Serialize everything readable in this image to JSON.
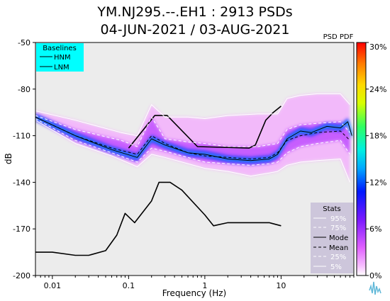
{
  "title_line1": "YM.NJ295.--.EH1 : 2913 PSDs",
  "title_line2": "04-JUN-2021 / 03-AUG-2021",
  "chart_data": {
    "type": "heatmap",
    "title": "YM.NJ295.--.EH1 : 2913 PSDs",
    "subtitle": "04-JUN-2021 / 03-AUG-2021",
    "xlabel": "Frequency (Hz)",
    "ylabel": "dB",
    "x_scale": "log",
    "xlim": [
      0.006,
      90
    ],
    "ylim": [
      -200,
      -50
    ],
    "x_ticks": [
      0.01,
      0.1,
      1,
      10
    ],
    "x_tick_labels": [
      "0.01",
      "0.1",
      "1",
      "10"
    ],
    "y_ticks": [
      -50,
      -80,
      -110,
      -140,
      -170,
      -200
    ],
    "y_tick_labels": [
      "-50",
      "-80",
      "-110",
      "-140",
      "-170",
      "-200"
    ],
    "colorbar": {
      "label": "PSD PDF",
      "ticks": [
        0,
        6,
        12,
        18,
        24,
        30
      ],
      "tick_labels": [
        "0%",
        "6%",
        "12%",
        "18%",
        "24%",
        "30%"
      ]
    },
    "baselines_legend": {
      "title": "Baselines",
      "entries": [
        "HNM",
        "LNM"
      ],
      "color": "#00ffff"
    },
    "stats_legend": {
      "title": "Stats",
      "entries": [
        "95%",
        "75%",
        "Mode",
        "Mean",
        "25%",
        "5%"
      ]
    },
    "series": [
      {
        "name": "HNM",
        "x": [
          0.1,
          0.22,
          0.32,
          0.8,
          3.8,
          4.6,
          6.3,
          7.9,
          10
        ],
        "y": [
          -118,
          -97,
          -97,
          -117,
          -118,
          -116,
          -100,
          -95,
          -91
        ]
      },
      {
        "name": "LNM",
        "x": [
          0.006,
          0.01,
          0.02,
          0.03,
          0.05,
          0.07,
          0.09,
          0.12,
          0.2,
          0.25,
          0.35,
          0.5,
          1.0,
          1.3,
          2.0,
          4.0,
          7.0,
          10
        ],
        "y": [
          -185,
          -185,
          -187,
          -187,
          -184,
          -174,
          -160,
          -166,
          -152,
          -140,
          -140,
          -145,
          -161,
          -168,
          -166,
          -166,
          -166,
          -168
        ]
      },
      {
        "name": "95%",
        "x": [
          0.006,
          0.02,
          0.08,
          0.13,
          0.2,
          0.3,
          0.6,
          1,
          2,
          5,
          9,
          12,
          18,
          30,
          60,
          80
        ],
        "y": [
          -94,
          -100,
          -108,
          -110,
          -90,
          -98,
          -98,
          -99,
          -97,
          -96,
          -96,
          -86,
          -84,
          -83,
          -83,
          -90
        ]
      },
      {
        "name": "75%",
        "x": [
          0.006,
          0.02,
          0.08,
          0.13,
          0.2,
          0.3,
          0.6,
          1,
          2,
          5,
          9,
          12,
          18,
          30,
          60,
          80
        ],
        "y": [
          -97,
          -106,
          -113,
          -117,
          -98,
          -112,
          -114,
          -115,
          -117,
          -117,
          -115,
          -106,
          -103,
          -102,
          -101,
          -108
        ]
      },
      {
        "name": "Mode",
        "x": [
          0.006,
          0.02,
          0.06,
          0.13,
          0.2,
          0.3,
          0.6,
          1,
          2,
          4,
          7,
          9,
          12,
          18,
          25,
          40,
          60,
          75,
          85
        ],
        "y": [
          -98,
          -110,
          -119,
          -124,
          -112,
          -116,
          -121,
          -122,
          -125,
          -126,
          -125,
          -122,
          -112,
          -107,
          -108,
          -104,
          -105,
          -101,
          -110
        ]
      },
      {
        "name": "Mean",
        "x": [
          0.006,
          0.02,
          0.06,
          0.13,
          0.2,
          0.3,
          0.6,
          1,
          2,
          4,
          7,
          9,
          12,
          18,
          30,
          60,
          80
        ],
        "y": [
          -98,
          -110,
          -118,
          -122,
          -110,
          -115,
          -121,
          -123,
          -124,
          -125,
          -124,
          -121,
          -113,
          -110,
          -108,
          -107,
          -113
        ]
      },
      {
        "name": "25%",
        "x": [
          0.006,
          0.02,
          0.06,
          0.13,
          0.2,
          0.3,
          0.6,
          1,
          2,
          4,
          7,
          9,
          12,
          18,
          30,
          60,
          80
        ],
        "y": [
          -99,
          -113,
          -121,
          -127,
          -118,
          -120,
          -124,
          -127,
          -128,
          -129,
          -128,
          -127,
          -121,
          -117,
          -115,
          -113,
          -122
        ]
      },
      {
        "name": "5%",
        "x": [
          0.006,
          0.02,
          0.06,
          0.13,
          0.2,
          0.3,
          0.6,
          1,
          2,
          4,
          7,
          9,
          12,
          18,
          30,
          60,
          80
        ],
        "y": [
          -100,
          -115,
          -123,
          -130,
          -122,
          -124,
          -128,
          -131,
          -133,
          -136,
          -134,
          -133,
          -129,
          -127,
          -126,
          -125,
          -140
        ]
      }
    ]
  }
}
